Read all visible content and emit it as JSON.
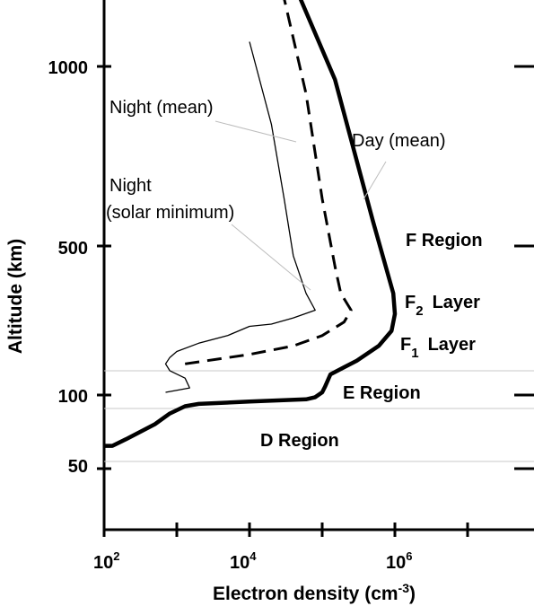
{
  "chart_data": {
    "type": "line",
    "title": "",
    "xlabel": "Electron density (cm",
    "xlabel_superscript": "-3",
    "xlabel_suffix": ")",
    "ylabel": "Altitude (km)",
    "x_scale": "log",
    "xlim": [
      100,
      100000000
    ],
    "ylim": [
      30,
      1300
    ],
    "x_ticks": [
      {
        "base": "10",
        "exp": "2"
      },
      {
        "base": "10",
        "exp": "4"
      },
      {
        "base": "10",
        "exp": "6"
      }
    ],
    "y_ticks": [
      "1000",
      "500",
      "100",
      "50"
    ],
    "series": [
      {
        "name": "Day (mean)",
        "style": "thick-solid",
        "points": [
          [
            100,
            62
          ],
          [
            130,
            62
          ],
          [
            200,
            66
          ],
          [
            500,
            76
          ],
          [
            800,
            84
          ],
          [
            1300,
            90
          ],
          [
            2000,
            92
          ],
          [
            10000,
            94
          ],
          [
            60000,
            96
          ],
          [
            80000,
            98
          ],
          [
            100000,
            103
          ],
          [
            110000,
            110
          ],
          [
            130000,
            125
          ],
          [
            300000,
            145
          ],
          [
            600000,
            170
          ],
          [
            900000,
            200
          ],
          [
            1000000,
            240
          ],
          [
            950000,
            300
          ],
          [
            500000,
            550
          ],
          [
            150000,
            950
          ],
          [
            50000,
            1300
          ]
        ]
      },
      {
        "name": "Night (mean)",
        "style": "dashed",
        "points": [
          [
            1300,
            140
          ],
          [
            10000,
            155
          ],
          [
            40000,
            170
          ],
          [
            100000,
            190
          ],
          [
            200000,
            220
          ],
          [
            250000,
            250
          ],
          [
            180000,
            300
          ],
          [
            150000,
            400
          ],
          [
            100000,
            600
          ],
          [
            60000,
            900
          ],
          [
            30000,
            1300
          ]
        ]
      },
      {
        "name": "Night (solar minimum)",
        "style": "thin-solid",
        "points": [
          [
            700,
            103
          ],
          [
            1500,
            108
          ],
          [
            1300,
            120
          ],
          [
            800,
            130
          ],
          [
            700,
            140
          ],
          [
            800,
            150
          ],
          [
            1000,
            160
          ],
          [
            2000,
            175
          ],
          [
            5000,
            190
          ],
          [
            10000,
            210
          ],
          [
            20000,
            215
          ],
          [
            40000,
            230
          ],
          [
            80000,
            250
          ],
          [
            60000,
            300
          ],
          [
            40000,
            450
          ],
          [
            30000,
            600
          ],
          [
            20000,
            800
          ],
          [
            10000,
            1100
          ]
        ]
      }
    ],
    "annotations": [
      {
        "text": "Night (mean)",
        "for": "Night (mean)"
      },
      {
        "text": "Day (mean)",
        "for": "Day (mean)"
      },
      {
        "text": "Night",
        "for": "Night (solar minimum)"
      },
      {
        "text": "(solar minimum)",
        "for": "Night (solar minimum)"
      }
    ],
    "regions": [
      {
        "label": "F Region"
      },
      {
        "label": "F",
        "sub": "2",
        "suffix": "Layer"
      },
      {
        "label": "F",
        "sub": "1",
        "suffix": "Layer"
      },
      {
        "label": "E Region"
      },
      {
        "label": "D Region"
      }
    ],
    "boundaries_km": [
      90,
      120
    ],
    "d_region_lower_km": 60,
    "grid": false,
    "legend": "none"
  }
}
